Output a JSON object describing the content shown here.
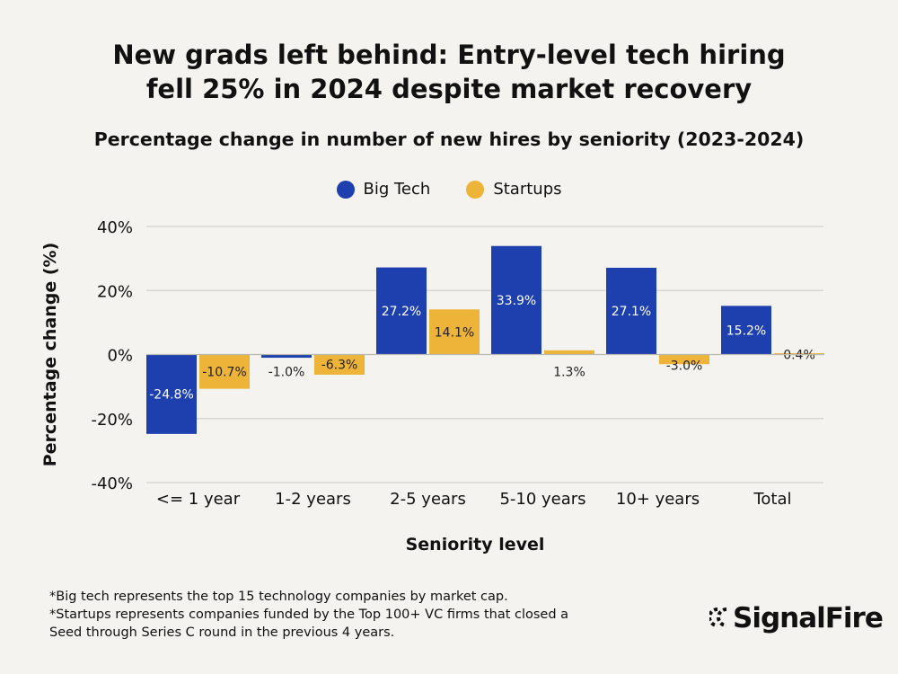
{
  "title_lines": [
    "New grads left behind: Entry-level tech hiring",
    "fell 25% in 2024 despite market recovery"
  ],
  "chart_data": {
    "type": "bar",
    "title": "Percentage change in number of new hires by seniority (2023-2024)",
    "xlabel": "Seniority level",
    "ylabel": "Percentage change (%)",
    "ylim": [
      -40,
      40
    ],
    "yticks": [
      40,
      20,
      0,
      -20,
      -40
    ],
    "ytick_labels": [
      "40%",
      "20%",
      "0%",
      "-20%",
      "-40%"
    ],
    "grid": true,
    "legend_placement": "top-center",
    "categories": [
      "<= 1 year",
      "1-2 years",
      "2-5 years",
      "5-10 years",
      "10+ years",
      "Total"
    ],
    "series": [
      {
        "name": "Big Tech",
        "color": "#1e3fae",
        "values": [
          -24.8,
          -1.0,
          27.2,
          33.9,
          27.1,
          15.2
        ],
        "labels": [
          "-24.8%",
          "-1.0%",
          "27.2%",
          "33.9%",
          "27.1%",
          "15.2%"
        ]
      },
      {
        "name": "Startups",
        "color": "#eeb339",
        "values": [
          -10.7,
          -6.3,
          14.1,
          1.3,
          -3.0,
          0.4
        ],
        "labels": [
          "-10.7%",
          "-6.3%",
          "14.1%",
          "1.3%",
          "-3.0%",
          "0.4%"
        ]
      }
    ]
  },
  "notes": [
    "*Big tech represents the top 15 technology companies by market cap.",
    "*Startups represents companies funded by the Top 100+ VC firms that closed a",
    "Seed through Series C round in the previous 4 years."
  ],
  "logo": "SignalFire"
}
